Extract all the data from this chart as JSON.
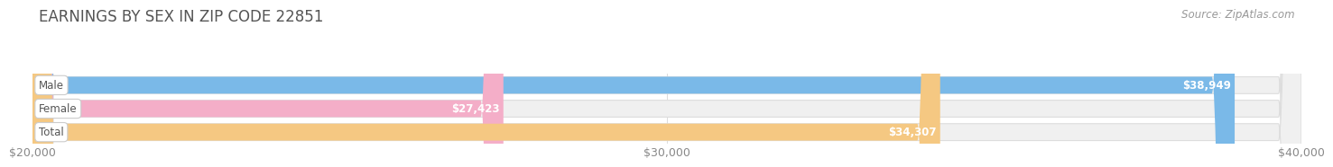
{
  "title": "EARNINGS BY SEX IN ZIP CODE 22851",
  "source": "Source: ZipAtlas.com",
  "categories": [
    "Male",
    "Female",
    "Total"
  ],
  "values": [
    38949,
    27423,
    34307
  ],
  "bar_colors": [
    "#7ab9e8",
    "#f4aec8",
    "#f5c882"
  ],
  "xlim_min": 20000,
  "xlim_max": 40000,
  "xticks": [
    20000,
    30000,
    40000
  ],
  "xtick_labels": [
    "$20,000",
    "$30,000",
    "$40,000"
  ],
  "title_color": "#555555",
  "title_fontsize": 12,
  "bar_height": 0.72,
  "fig_bg_color": "#ffffff",
  "ax_bg_color": "#ffffff",
  "bar_bg_color": "#f0f0f0",
  "bar_border_color": "#dddddd",
  "value_label_inside_color": "#ffffff",
  "value_label_outside_color": "#888888",
  "category_label_color": "#555555",
  "source_color": "#999999"
}
